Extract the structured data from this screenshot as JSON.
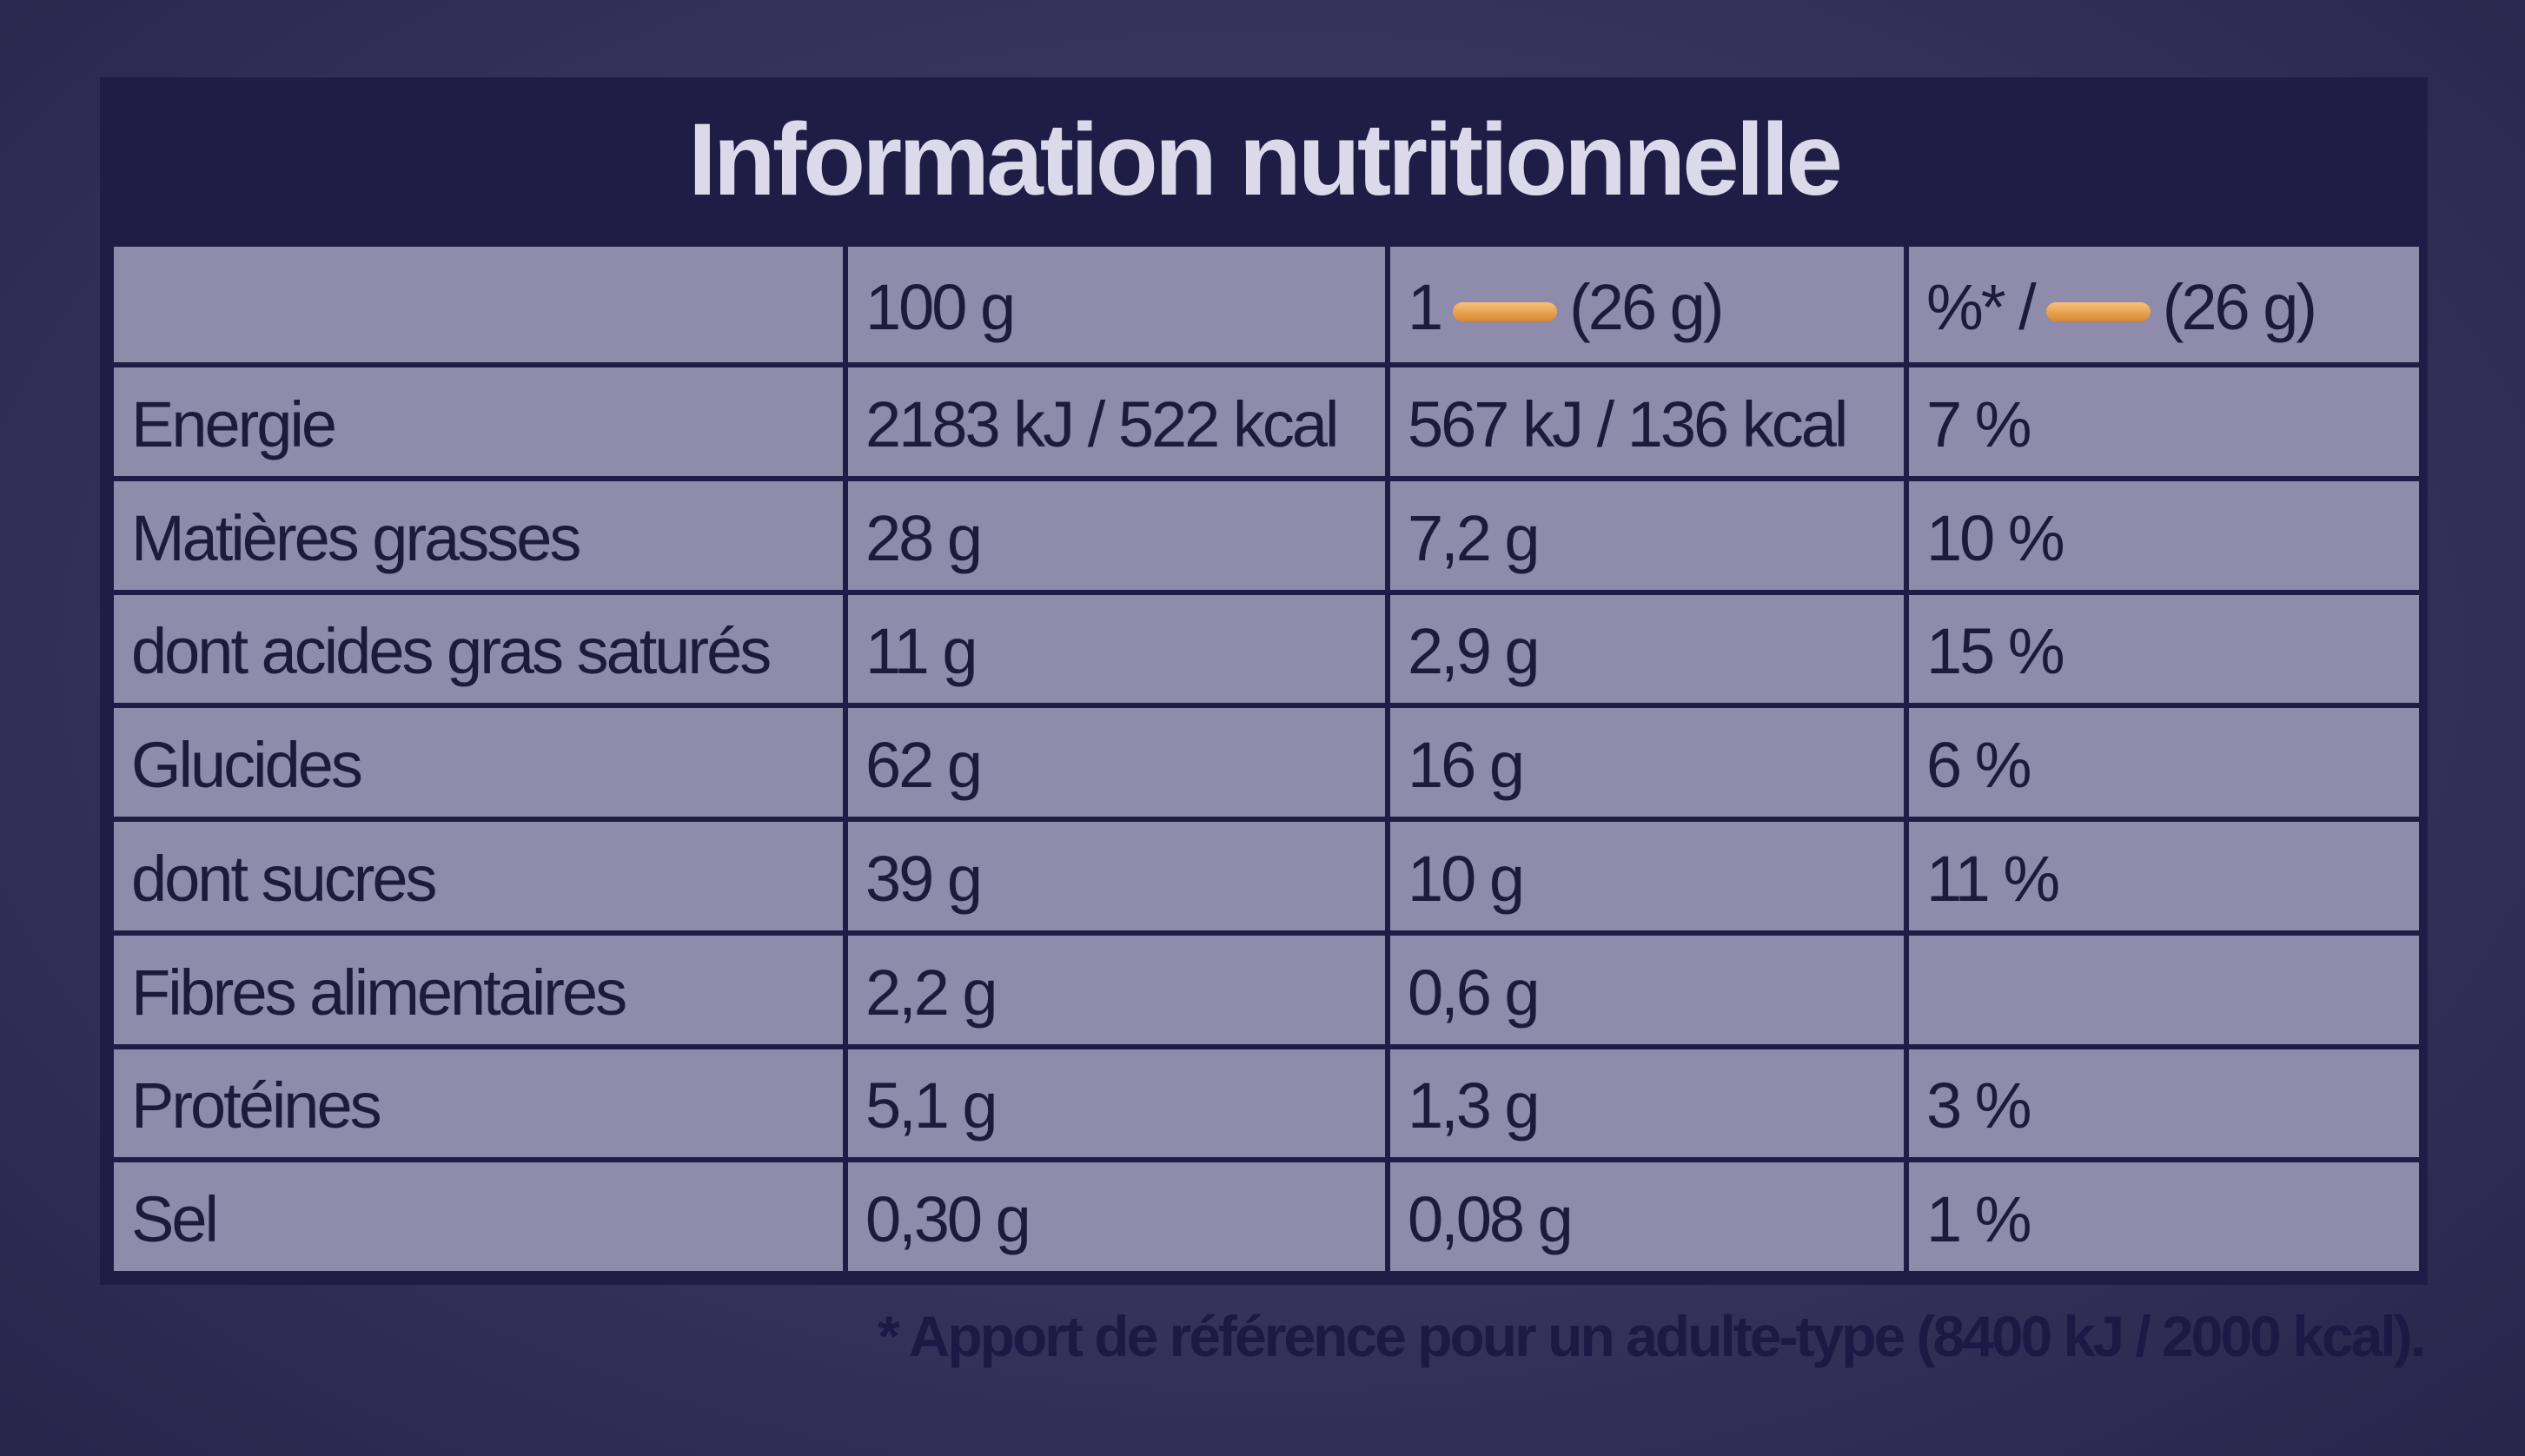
{
  "header": {
    "title": "Information nutritionnelle"
  },
  "table": {
    "columns": [
      {
        "label": "100 g"
      },
      {
        "count": "1",
        "portion": "(26 g)"
      },
      {
        "prefix": "%* /",
        "portion": "(26 g)"
      }
    ],
    "rows": [
      [
        "Energie",
        "2183 kJ / 522 kcal",
        "567 kJ / 136 kcal",
        "7 %"
      ],
      [
        "Matières grasses",
        "28 g",
        "7,2 g",
        "10 %"
      ],
      [
        "dont acides gras saturés",
        "11 g",
        "2,9 g",
        "15 %"
      ],
      [
        "Glucides",
        "62 g",
        "16 g",
        "6 %"
      ],
      [
        "dont sucres",
        "39 g",
        "10 g",
        "11 %"
      ],
      [
        "Fibres alimentaires",
        "2,2 g",
        "0,6 g"
      ],
      [
        "Protéines",
        "5,1 g",
        "1,3 g",
        "3 %"
      ],
      [
        "Sel",
        "0,30 g",
        "0,08 g",
        "1 %"
      ]
    ]
  },
  "footnote": "* Apport de référence pour un adulte-type (8400 kJ / 2000 kcal)."
}
